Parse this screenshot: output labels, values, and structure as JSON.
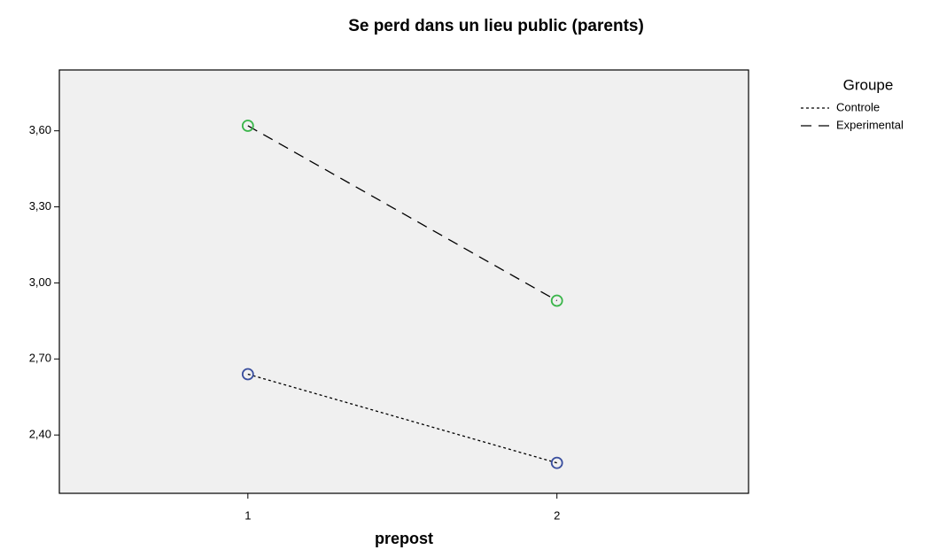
{
  "chart_data": {
    "type": "line",
    "title": "Se perd dans un lieu public (parents)",
    "x_label": "prepost",
    "legend_title": "Groupe",
    "x": [
      1,
      2
    ],
    "series": [
      {
        "name": "Controle",
        "color": "#3a4f9e",
        "line_color": "#000000",
        "dash": "dotted",
        "values": [
          2.64,
          2.29
        ]
      },
      {
        "name": "Experimental",
        "color": "#3ab54a",
        "line_color": "#000000",
        "dash": "dashed",
        "values": [
          3.62,
          2.93
        ]
      }
    ],
    "xlim": [
      0.39,
      2.62
    ],
    "xticks": [
      1,
      2
    ],
    "ylim": [
      2.17,
      3.84
    ],
    "yticks": [
      {
        "value": 2.4,
        "label": "2,40"
      },
      {
        "value": 2.7,
        "label": "2,70"
      },
      {
        "value": 3.0,
        "label": "3,00"
      },
      {
        "value": 3.3,
        "label": "3,30"
      },
      {
        "value": 3.6,
        "label": "3,60"
      }
    ],
    "plot_background": "#f0f0f0",
    "legend_position": "right"
  }
}
